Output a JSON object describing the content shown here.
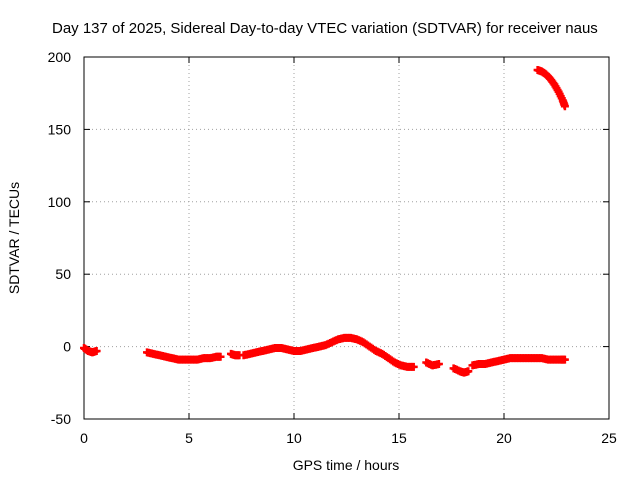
{
  "chart_data": {
    "type": "scatter",
    "title": "Day 137 of 2025, Sidereal Day-to-day VTEC variation (SDTVAR) for receiver naus",
    "xlabel": "GPS time / hours",
    "ylabel": "SDTVAR / TECUs",
    "xlim": [
      0,
      25
    ],
    "ylim": [
      -50,
      200
    ],
    "xticks": [
      0,
      5,
      10,
      15,
      20,
      25
    ],
    "yticks": [
      -50,
      0,
      50,
      100,
      150,
      200
    ],
    "grid": true,
    "legend": "none",
    "series": [
      {
        "name": "SDTVAR",
        "color": "#ff0000",
        "marker": "plus",
        "segments": [
          [
            [
              0.0,
              -1
            ],
            [
              0.2,
              -3
            ],
            [
              0.4,
              -4
            ],
            [
              0.6,
              -3
            ]
          ],
          [
            [
              3.0,
              -4
            ],
            [
              3.3,
              -5
            ],
            [
              3.6,
              -6
            ],
            [
              3.9,
              -7
            ],
            [
              4.2,
              -8
            ],
            [
              4.5,
              -9
            ],
            [
              4.8,
              -9
            ],
            [
              5.1,
              -9
            ],
            [
              5.4,
              -9
            ],
            [
              5.7,
              -8
            ],
            [
              6.0,
              -8
            ],
            [
              6.3,
              -7
            ],
            [
              6.5,
              -7
            ]
          ],
          [
            [
              7.0,
              -5
            ],
            [
              7.2,
              -6
            ],
            [
              7.4,
              -6
            ]
          ],
          [
            [
              7.6,
              -6
            ],
            [
              7.9,
              -5
            ],
            [
              8.2,
              -4
            ],
            [
              8.5,
              -3
            ],
            [
              8.8,
              -2
            ],
            [
              9.1,
              -1
            ],
            [
              9.4,
              -1
            ],
            [
              9.7,
              -2
            ],
            [
              10.0,
              -3
            ],
            [
              10.3,
              -3
            ],
            [
              10.6,
              -2
            ],
            [
              10.9,
              -1
            ],
            [
              11.2,
              0
            ],
            [
              11.5,
              1
            ],
            [
              11.8,
              3
            ],
            [
              12.1,
              5
            ],
            [
              12.4,
              6
            ],
            [
              12.7,
              6
            ],
            [
              13.0,
              5
            ],
            [
              13.3,
              3
            ],
            [
              13.6,
              0
            ],
            [
              13.9,
              -3
            ],
            [
              14.2,
              -5
            ],
            [
              14.5,
              -8
            ],
            [
              14.8,
              -11
            ],
            [
              15.1,
              -13
            ],
            [
              15.4,
              -14
            ],
            [
              15.7,
              -14
            ]
          ],
          [
            [
              16.3,
              -11
            ],
            [
              16.6,
              -13
            ],
            [
              16.9,
              -12
            ]
          ],
          [
            [
              17.6,
              -15
            ],
            [
              17.9,
              -17
            ],
            [
              18.1,
              -18
            ],
            [
              18.3,
              -17
            ]
          ],
          [
            [
              18.5,
              -13
            ],
            [
              18.8,
              -12
            ],
            [
              19.1,
              -12
            ],
            [
              19.4,
              -11
            ],
            [
              19.7,
              -10
            ],
            [
              20.0,
              -9
            ],
            [
              20.3,
              -8
            ],
            [
              20.6,
              -8
            ],
            [
              20.9,
              -8
            ],
            [
              21.2,
              -8
            ],
            [
              21.5,
              -8
            ],
            [
              21.8,
              -8
            ],
            [
              22.1,
              -9
            ],
            [
              22.4,
              -9
            ],
            [
              22.7,
              -9
            ],
            [
              22.9,
              -9
            ]
          ],
          [
            [
              21.6,
              191
            ],
            [
              21.8,
              190
            ],
            [
              22.0,
              188
            ],
            [
              22.2,
              185
            ],
            [
              22.4,
              181
            ],
            [
              22.6,
              176
            ],
            [
              22.8,
              170
            ],
            [
              22.9,
              166
            ]
          ]
        ]
      }
    ]
  }
}
